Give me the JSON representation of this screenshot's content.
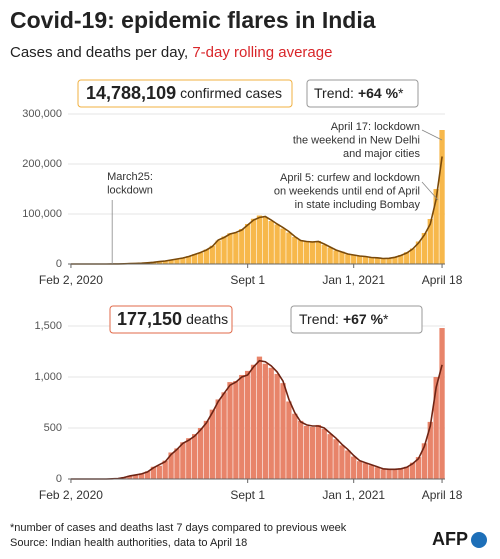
{
  "title": "Covid-19: epidemic flares in India",
  "subtitle": "Cases and deaths per day, ",
  "subtitle_highlight": "7-day rolling average",
  "chart_data": [
    {
      "type": "bar",
      "total": "14,788,109",
      "total_caption": "confirmed cases",
      "trend_prefix": "Trend:",
      "trend_value": "+64 %",
      "trend_suffix": "*",
      "categories": [
        "Feb 2, 2020",
        null,
        null,
        null,
        null,
        null,
        null,
        null,
        null,
        null,
        null,
        null,
        null,
        null,
        null,
        null,
        null,
        null,
        null,
        null,
        null,
        null,
        null,
        null,
        null,
        null,
        null,
        null,
        null,
        null,
        "Sept 1",
        null,
        null,
        null,
        null,
        null,
        null,
        null,
        null,
        null,
        null,
        null,
        null,
        null,
        null,
        null,
        null,
        null,
        "Jan 1, 2021",
        null,
        null,
        null,
        null,
        null,
        null,
        null,
        null,
        null,
        null,
        null,
        null,
        null,
        null,
        "April 18"
      ],
      "values": [
        0,
        0,
        0,
        0,
        0,
        15,
        70,
        120,
        300,
        560,
        850,
        1300,
        1500,
        2700,
        3300,
        5000,
        6200,
        8300,
        9800,
        12500,
        15800,
        19500,
        22500,
        29000,
        36500,
        47000,
        55000,
        61500,
        62000,
        70000,
        80000,
        90500,
        97000,
        93000,
        86000,
        79000,
        71000,
        63000,
        54000,
        48000,
        44500,
        45500,
        46000,
        38500,
        33000,
        27000,
        25000,
        19500,
        18500,
        15500,
        14500,
        13500,
        12000,
        11500,
        12000,
        14000,
        18000,
        23500,
        31000,
        45000,
        62000,
        90000,
        150000,
        268000
      ],
      "rolling_average": [
        0,
        0,
        0,
        0,
        0,
        10,
        50,
        100,
        250,
        500,
        900,
        1200,
        1600,
        2500,
        3500,
        4700,
        6000,
        8000,
        10000,
        12000,
        15000,
        19000,
        23000,
        28000,
        35000,
        48000,
        53000,
        60000,
        63000,
        68000,
        78000,
        88000,
        93000,
        95000,
        88000,
        80000,
        73000,
        65000,
        55000,
        47000,
        45000,
        44000,
        45000,
        40000,
        34000,
        28000,
        24000,
        20000,
        18000,
        16000,
        15000,
        13000,
        12500,
        11000,
        11500,
        13500,
        17000,
        22000,
        30000,
        42000,
        58000,
        80000,
        130000,
        215000
      ],
      "bar_color": "#f7b84b",
      "line_color": "#7a4a0a",
      "box_color": "#f0b040",
      "ylim": [
        0,
        300000
      ],
      "yticks": [
        0,
        {
          "value": 100000,
          "label": "100,000"
        },
        {
          "value": 200000,
          "label": "200,000"
        },
        {
          "value": 300000,
          "label": "300,000"
        }
      ],
      "grid": true,
      "annotations": [
        {
          "lines": [
            "March25:",
            "lockdown"
          ]
        },
        {
          "lines": [
            "April 17:  lockdown",
            "the weekend in New Delhi",
            "and major cities"
          ]
        },
        {
          "lines": [
            "April 5: curfew and lockdown",
            "on weekends until end of April",
            "in state including Bombay"
          ]
        }
      ]
    },
    {
      "type": "bar",
      "total": "177,150",
      "total_caption": "deaths",
      "trend_prefix": "Trend:",
      "trend_value": "+67 %",
      "trend_suffix": "*",
      "categories": [
        "Feb 2, 2020",
        null,
        null,
        null,
        null,
        null,
        null,
        null,
        null,
        null,
        null,
        null,
        null,
        null,
        null,
        null,
        null,
        null,
        null,
        null,
        null,
        null,
        null,
        null,
        null,
        null,
        null,
        null,
        null,
        null,
        "Sept 1",
        null,
        null,
        null,
        null,
        null,
        null,
        null,
        null,
        null,
        null,
        null,
        null,
        null,
        null,
        null,
        null,
        null,
        "Jan 1, 2021",
        null,
        null,
        null,
        null,
        null,
        null,
        null,
        null,
        null,
        null,
        null,
        null,
        null,
        null,
        "April 18"
      ],
      "values": [
        0,
        0,
        0,
        0,
        0,
        0,
        0,
        3,
        6,
        18,
        32,
        38,
        55,
        75,
        120,
        130,
        180,
        260,
        300,
        360,
        400,
        440,
        500,
        570,
        680,
        780,
        850,
        950,
        960,
        1020,
        1060,
        1120,
        1200,
        1130,
        1090,
        1030,
        940,
        760,
        640,
        570,
        520,
        510,
        530,
        490,
        440,
        390,
        330,
        280,
        220,
        175,
        155,
        135,
        115,
        95,
        90,
        98,
        105,
        120,
        160,
        215,
        350,
        560,
        1000,
        1480
      ],
      "rolling_average": [
        0,
        0,
        0,
        0,
        0,
        0,
        0,
        2,
        5,
        15,
        30,
        40,
        50,
        70,
        110,
        140,
        170,
        240,
        290,
        350,
        380,
        420,
        480,
        550,
        650,
        760,
        840,
        920,
        950,
        1000,
        1020,
        1100,
        1160,
        1150,
        1110,
        1050,
        960,
        780,
        650,
        560,
        530,
        520,
        520,
        500,
        450,
        400,
        340,
        290,
        230,
        180,
        160,
        140,
        120,
        100,
        95,
        95,
        100,
        115,
        150,
        200,
        320,
        520,
        900,
        1120
      ],
      "bar_color": "#e8846a",
      "line_color": "#6e2414",
      "box_color": "#e06a4a",
      "ylim": [
        0,
        1500
      ],
      "yticks": [
        0,
        500,
        {
          "value": 1000,
          "label": "1,000"
        },
        {
          "value": 1500,
          "label": "1,500"
        }
      ],
      "grid": true,
      "annotations": []
    }
  ],
  "footnote": "*number of cases and deaths last 7 days compared to previous week",
  "source": "Source: Indian health authorities, data to April 18",
  "logo": "AFP"
}
